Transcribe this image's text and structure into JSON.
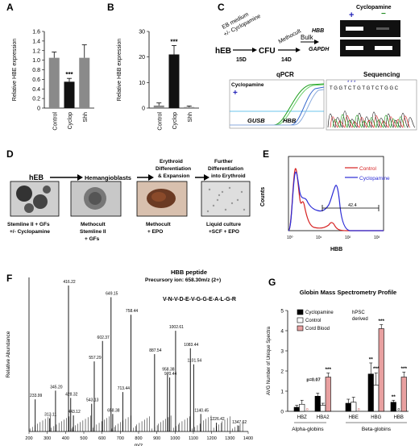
{
  "panels": {
    "A": {
      "label": "A"
    },
    "B": {
      "label": "B"
    },
    "C": {
      "label": "C"
    },
    "D": {
      "label": "D"
    },
    "E": {
      "label": "E"
    },
    "F": {
      "label": "F"
    },
    "G": {
      "label": "G"
    }
  },
  "chart_data": [
    {
      "type": "bar",
      "panel": "A",
      "ylabel": "Relative HBE expression",
      "categories": [
        "Control",
        "Cyclop",
        "Shh"
      ],
      "values": [
        1.05,
        0.55,
        1.05
      ],
      "errors": [
        0.12,
        0.07,
        0.27
      ],
      "colors": [
        "#8a8a8a",
        "#111111",
        "#8a8a8a"
      ],
      "ylim": [
        0,
        1.6
      ],
      "yticks": [
        "0",
        "0.2",
        "0.4",
        "0.6",
        "0.8",
        "1.0",
        "1.2",
        "1.4",
        "1.6"
      ],
      "annotation": {
        "category": "Cyclop",
        "text": "***"
      }
    },
    {
      "type": "bar",
      "panel": "B",
      "ylabel": "Relative HBB expression",
      "categories": [
        "Control",
        "Cyclop",
        "Shh"
      ],
      "values": [
        1.0,
        21.0,
        0.4
      ],
      "errors": [
        1.0,
        3.5,
        0.4
      ],
      "colors": [
        "#8a8a8a",
        "#111111",
        "#8a8a8a"
      ],
      "ylim": [
        0,
        30
      ],
      "yticks": [
        "0",
        "10",
        "20",
        "30"
      ],
      "annotation": {
        "category": "Cyclop",
        "text": "***"
      }
    },
    {
      "type": "line",
      "panel": "E",
      "xlabel": "HBB",
      "ylabel": "Counts",
      "series": [
        {
          "name": "Control",
          "color": "#d62020"
        },
        {
          "name": "Cyclopamine",
          "color": "#2b2bd6"
        }
      ],
      "gate_label": "42.4",
      "xticks": [
        "10⁰",
        "10¹",
        "10²",
        "10³"
      ]
    },
    {
      "type": "bar",
      "panel": "F",
      "xlabel": "m/z",
      "ylabel": "Relative Abundance",
      "xlim": [
        200,
        1400
      ],
      "xticks": [
        "200",
        "300",
        "400",
        "500",
        "600",
        "700",
        "800",
        "900",
        "1000",
        "1100",
        "1200",
        "1300",
        "1400"
      ],
      "peaks": [
        {
          "x": 233.99,
          "y": 0.22,
          "label": "233.99"
        },
        {
          "x": 313.11,
          "y": 0.09,
          "label": "313.11"
        },
        {
          "x": 345.2,
          "y": 0.28,
          "label": "345.20"
        },
        {
          "x": 416.22,
          "y": 1.0,
          "label": "416.22"
        },
        {
          "x": 428.32,
          "y": 0.23,
          "label": "428.32"
        },
        {
          "x": 443.12,
          "y": 0.11,
          "label": "443.12"
        },
        {
          "x": 543.13,
          "y": 0.19,
          "label": "543.13"
        },
        {
          "x": 557.29,
          "y": 0.48,
          "label": "557.29"
        },
        {
          "x": 602.37,
          "y": 0.62,
          "label": "602.37"
        },
        {
          "x": 649.15,
          "y": 0.92,
          "label": "649.15"
        },
        {
          "x": 658.38,
          "y": 0.12,
          "label": "658.38"
        },
        {
          "x": 713.44,
          "y": 0.27,
          "label": "713.44"
        },
        {
          "x": 758.44,
          "y": 0.8,
          "label": "758.44"
        },
        {
          "x": 887.54,
          "y": 0.53,
          "label": "887.54"
        },
        {
          "x": 958.38,
          "y": 0.4,
          "label": "958.38"
        },
        {
          "x": 970.44,
          "y": 0.37,
          "label": "970.44"
        },
        {
          "x": 1002.61,
          "y": 0.69,
          "label": "1002.61"
        },
        {
          "x": 1083.44,
          "y": 0.57,
          "label": "1083.44"
        },
        {
          "x": 1101.54,
          "y": 0.46,
          "label": "1101.54"
        },
        {
          "x": 1140.45,
          "y": 0.12,
          "label": "1140.45"
        },
        {
          "x": 1226.42,
          "y": 0.06,
          "label": "1226.42"
        },
        {
          "x": 1347.62,
          "y": 0.04,
          "label": "1347.62"
        }
      ]
    },
    {
      "type": "bar",
      "panel": "G",
      "title": "Globin Mass Spectrometry Profile",
      "ylabel": "AVG Number of Unique Spectra",
      "categories": [
        "HBZ",
        "HBA2",
        "HBE",
        "HBG",
        "HBB"
      ],
      "group_labels": [
        "Alpha-globins",
        "Beta-globins"
      ],
      "ylim": [
        0,
        5
      ],
      "yticks": [
        "0",
        "1",
        "2",
        "3",
        "4",
        "5"
      ],
      "series": [
        {
          "name": "Cyclopamine",
          "color": "#000000",
          "values": [
            0.2,
            0.75,
            0.4,
            1.85,
            0.45
          ],
          "errors": [
            0.1,
            0.15,
            0.2,
            0.55,
            0.1
          ]
        },
        {
          "name": "Control",
          "color": "#ffffff",
          "values": [
            0.35,
            0.3,
            0.45,
            1.3,
            0.0
          ],
          "errors": [
            0.2,
            0.1,
            0.25,
            0.6,
            0.0
          ]
        },
        {
          "name": "Cord Blood",
          "color": "#e8a0a0",
          "values": [
            0.0,
            1.7,
            0.0,
            4.1,
            1.7
          ],
          "errors": [
            0.0,
            0.2,
            0.0,
            0.2,
            0.25
          ]
        }
      ],
      "annotations": [
        "p=0.07",
        "***",
        "**",
        "***",
        "***",
        "**",
        "***",
        "**"
      ],
      "note": "hPSC derived"
    }
  ],
  "panelC": {
    "flow_medium": "EB medium",
    "flow_pm": "+/- Cyclopamine",
    "flow_start": "hEB",
    "flow_mid": "CFU",
    "flow_end": "Bulk",
    "flow_method": "Methocult",
    "flow_d1": "15D",
    "flow_d2": "14D",
    "gel_title": "Cyclopamine",
    "gel_plus": "+",
    "gel_minus": "−",
    "gel_row1": "HBB",
    "gel_row2": "GAPDH",
    "qpcr_title": "qPCR",
    "qpcr_label": "Cyclopamine",
    "qpcr_plus": "+",
    "qpcr_gusb": "GUSB",
    "qpcr_hbb": "HBB",
    "seq_title": "Sequencing",
    "seq_bases": "T G G T C T G T G T C T G G C"
  },
  "panelD": {
    "steps": [
      "hEB",
      "Hemangioblasts",
      "Erythroid Differentiation & Expansion",
      "Further Differentiation into Erythroid"
    ],
    "media": [
      "Stemline II + GFs +/- Cyclopamine",
      "Methocult Stemline II + GFs",
      "Methocult + EPO",
      "Liquid culture +SCF + EPO"
    ]
  },
  "panelF": {
    "peptide_title": "HBB peptide",
    "precursor": "Precursory ion: 658.30m/z (2+)",
    "sequence": "V-N-V-D-E-V-G-G-E-A-L-G-R"
  }
}
